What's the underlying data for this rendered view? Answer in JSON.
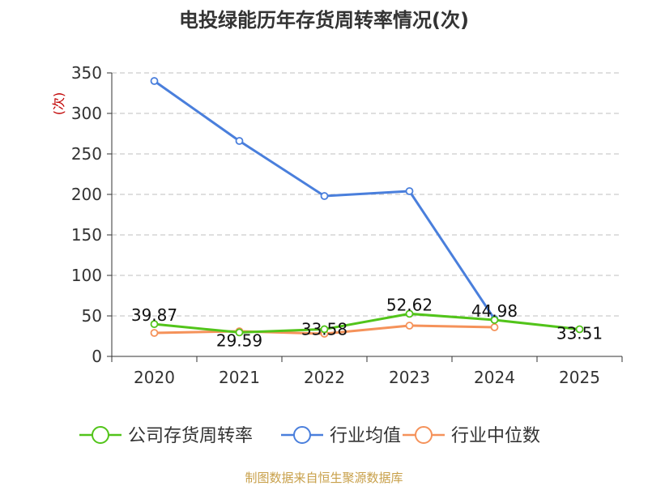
{
  "chart_data": {
    "type": "line",
    "title": "电投绿能历年存货周转率情况(次)",
    "ylabel": "(次)",
    "xlabel": "",
    "categories": [
      "2020",
      "2021",
      "2022",
      "2023",
      "2024",
      "2025"
    ],
    "ylim": [
      0,
      350
    ],
    "yticks": [
      0,
      50,
      100,
      150,
      200,
      250,
      300,
      350
    ],
    "grid": true,
    "legend_position": "bottom",
    "series": [
      {
        "name": "公司存货周转率",
        "color": "#52c41a",
        "values": [
          39.87,
          29.59,
          33.58,
          52.62,
          44.98,
          33.51
        ],
        "labels": [
          "39.87",
          "29.59",
          "33.58",
          "52.62",
          "44.98",
          "33.51"
        ]
      },
      {
        "name": "行业均值",
        "color": "#4a7fdc",
        "values": [
          340,
          266,
          198,
          204,
          46,
          null
        ]
      },
      {
        "name": "行业中位数",
        "color": "#f5925a",
        "values": [
          29,
          31,
          28,
          38,
          36,
          null
        ]
      }
    ]
  },
  "source_text": "制图数据来自恒生聚源数据库"
}
